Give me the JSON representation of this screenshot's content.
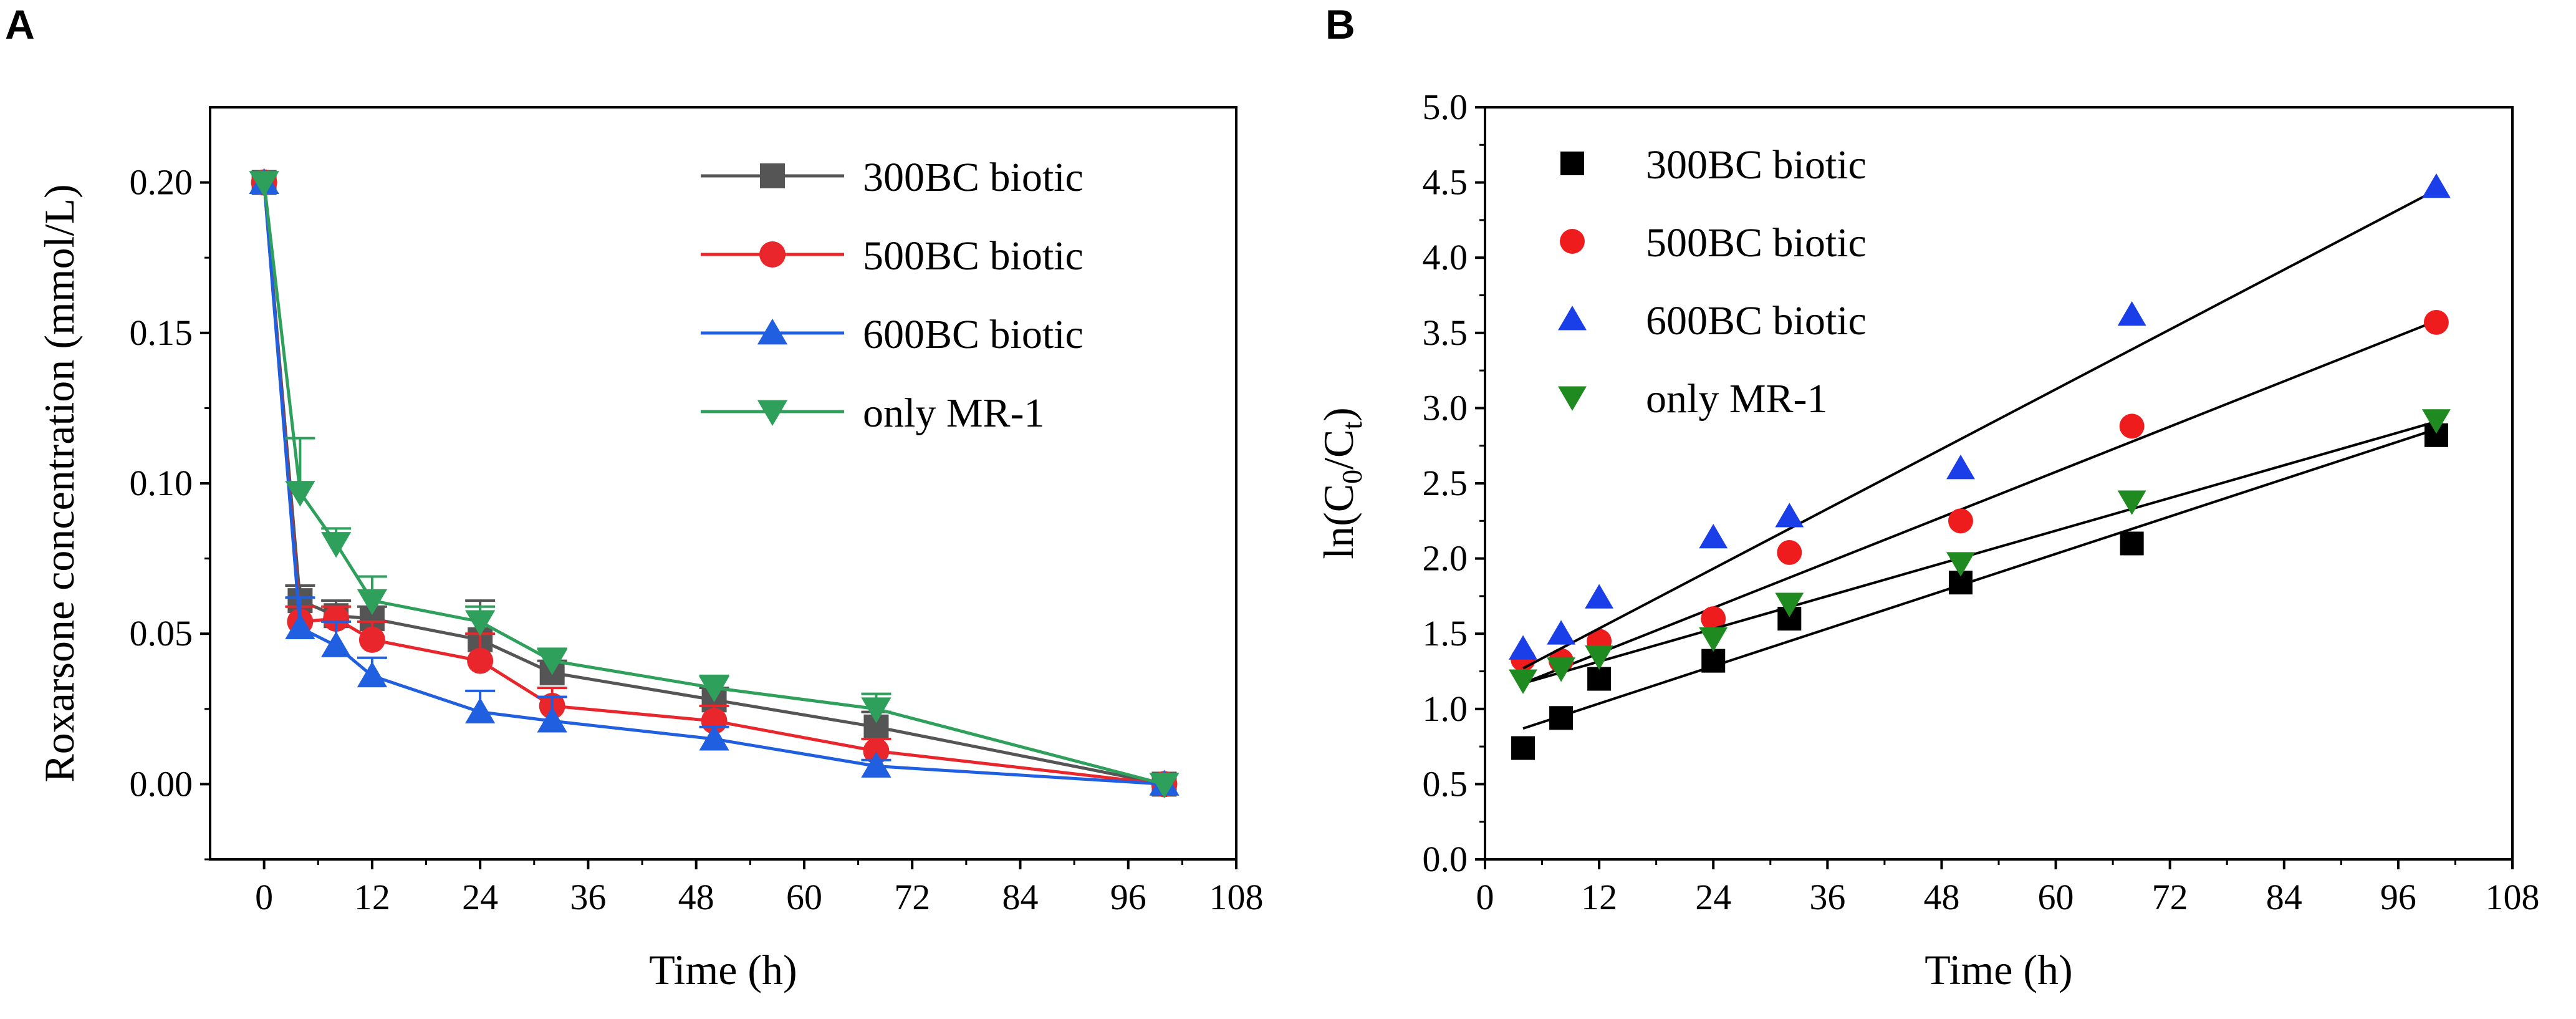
{
  "chart_data": [
    {
      "panel_label": "A",
      "type": "line",
      "xlabel": "Time (h)",
      "ylabel": "Roxarsone concentration (mmol/L)",
      "xlim": [
        -6,
        108
      ],
      "ylim": [
        -0.025,
        0.225
      ],
      "xticks": [
        0,
        12,
        24,
        36,
        48,
        60,
        72,
        84,
        96,
        108
      ],
      "yticks": [
        0.0,
        0.05,
        0.1,
        0.15,
        0.2
      ],
      "ytick_labels": [
        "0.00",
        "0.05",
        "0.10",
        "0.15",
        "0.20"
      ],
      "legend_position": "top-right",
      "x": [
        0,
        4,
        8,
        12,
        24,
        32,
        50,
        68,
        100
      ],
      "series": [
        {
          "name": "300BC biotic",
          "color": "#555555",
          "marker": "square",
          "values": [
            0.2,
            0.061,
            0.056,
            0.055,
            0.048,
            0.037,
            0.028,
            0.019,
            0.0
          ],
          "errors": [
            0.002,
            0.005,
            0.005,
            0.004,
            0.013,
            0.004,
            0.004,
            0.005,
            0.0
          ]
        },
        {
          "name": "500BC biotic",
          "color": "#e8262b",
          "marker": "circle",
          "values": [
            0.2,
            0.054,
            0.055,
            0.048,
            0.041,
            0.026,
            0.021,
            0.011,
            0.0
          ],
          "errors": [
            0.002,
            0.005,
            0.004,
            0.006,
            0.009,
            0.006,
            0.005,
            0.004,
            0.0
          ]
        },
        {
          "name": "600BC biotic",
          "color": "#1f5fe0",
          "marker": "triangle-up",
          "values": [
            0.2,
            0.052,
            0.046,
            0.036,
            0.024,
            0.021,
            0.015,
            0.006,
            0.0
          ],
          "errors": [
            0.002,
            0.01,
            0.008,
            0.006,
            0.007,
            0.008,
            0.004,
            0.002,
            0.0
          ]
        },
        {
          "name": "only MR-1",
          "color": "#2fa05c",
          "marker": "triangle-down",
          "values": [
            0.2,
            0.097,
            0.08,
            0.061,
            0.054,
            0.041,
            0.032,
            0.025,
            0.0
          ],
          "errors": [
            0.002,
            0.018,
            0.005,
            0.008,
            0.005,
            0.004,
            0.004,
            0.005,
            0.0
          ]
        }
      ]
    },
    {
      "panel_label": "B",
      "type": "scatter",
      "xlabel": "Time (h)",
      "ylabel_main": "ln(C",
      "ylabel_sub1": "0",
      "ylabel_mid": "/C",
      "ylabel_sub2": "t",
      "ylabel_end": ")",
      "xlim": [
        0,
        108
      ],
      "ylim": [
        0,
        5
      ],
      "xticks": [
        0,
        12,
        24,
        36,
        48,
        60,
        72,
        84,
        96,
        108
      ],
      "yticks": [
        0.0,
        0.5,
        1.0,
        1.5,
        2.0,
        2.5,
        3.0,
        3.5,
        4.0,
        4.5,
        5.0
      ],
      "ytick_labels": [
        "0.0",
        "0.5",
        "1.0",
        "1.5",
        "2.0",
        "2.5",
        "3.0",
        "3.5",
        "4.0",
        "4.5",
        "5.0"
      ],
      "legend_position": "top-left",
      "x": [
        4,
        8,
        12,
        24,
        32,
        50,
        68,
        100
      ],
      "series": [
        {
          "name": "300BC biotic",
          "color": "#000000",
          "marker": "square",
          "values": [
            0.74,
            0.94,
            1.2,
            1.32,
            1.6,
            1.84,
            2.1,
            2.82
          ],
          "fit": [
            [
              4,
              0.87
            ],
            [
              100,
              2.86
            ]
          ]
        },
        {
          "name": "500BC biotic",
          "color": "#ee1c1c",
          "marker": "circle",
          "values": [
            1.33,
            1.32,
            1.45,
            1.6,
            2.04,
            2.25,
            2.88,
            3.57
          ],
          "fit": [
            [
              4,
              1.17
            ],
            [
              100,
              3.58
            ]
          ]
        },
        {
          "name": "600BC biotic",
          "color": "#1a3fe8",
          "marker": "triangle-up",
          "values": [
            1.4,
            1.5,
            1.74,
            2.14,
            2.28,
            2.6,
            3.62,
            4.47
          ],
          "fit": [
            [
              4,
              1.27
            ],
            [
              100,
              4.45
            ]
          ]
        },
        {
          "name": "only MR-1",
          "color": "#1f8a1f",
          "marker": "triangle-down",
          "values": [
            1.19,
            1.27,
            1.35,
            1.47,
            1.7,
            1.97,
            2.38,
            2.92
          ],
          "fit": [
            [
              4,
              1.17
            ],
            [
              100,
              2.91
            ]
          ]
        }
      ]
    }
  ]
}
